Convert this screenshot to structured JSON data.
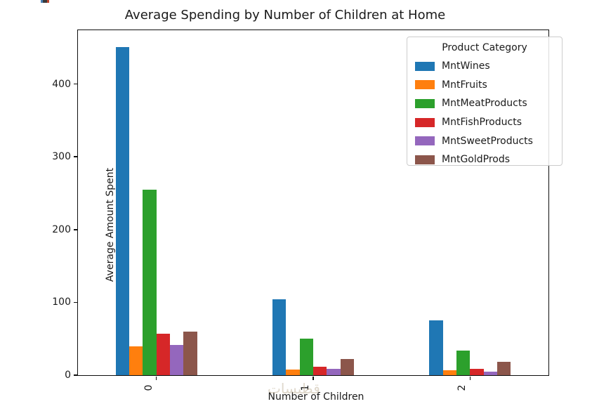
{
  "title": "Average Spending by Number of Children at Home",
  "watermark_text": "قطبسات",
  "chart_data": {
    "type": "bar",
    "title": "Average Spending by Number of Children at Home",
    "xlabel": "Number of Children",
    "ylabel": "Average Amount Spent",
    "categories": [
      "0",
      "1",
      "2"
    ],
    "series": [
      {
        "name": "MntWines",
        "color": "#1f77b4",
        "values": [
          451,
          104,
          75
        ]
      },
      {
        "name": "MntFruits",
        "color": "#ff7f0e",
        "values": [
          40,
          8,
          7
        ]
      },
      {
        "name": "MntMeatProducts",
        "color": "#2ca02c",
        "values": [
          255,
          50,
          34
        ]
      },
      {
        "name": "MntFishProducts",
        "color": "#d62728",
        "values": [
          57,
          12,
          9
        ]
      },
      {
        "name": "MntSweetProducts",
        "color": "#9467bd",
        "values": [
          42,
          9,
          5
        ]
      },
      {
        "name": "MntGoldProds",
        "color": "#8c564b",
        "values": [
          60,
          22,
          18
        ]
      }
    ],
    "legend_title": "Product Category",
    "legend_position": "upper right",
    "yticks": [
      0,
      100,
      200,
      300,
      400
    ],
    "ylim": [
      0,
      474
    ],
    "xlim": [
      -0.5,
      2.5
    ],
    "grid": false,
    "bar_group_width_fraction": 0.52,
    "xtick_rotation": 90
  }
}
